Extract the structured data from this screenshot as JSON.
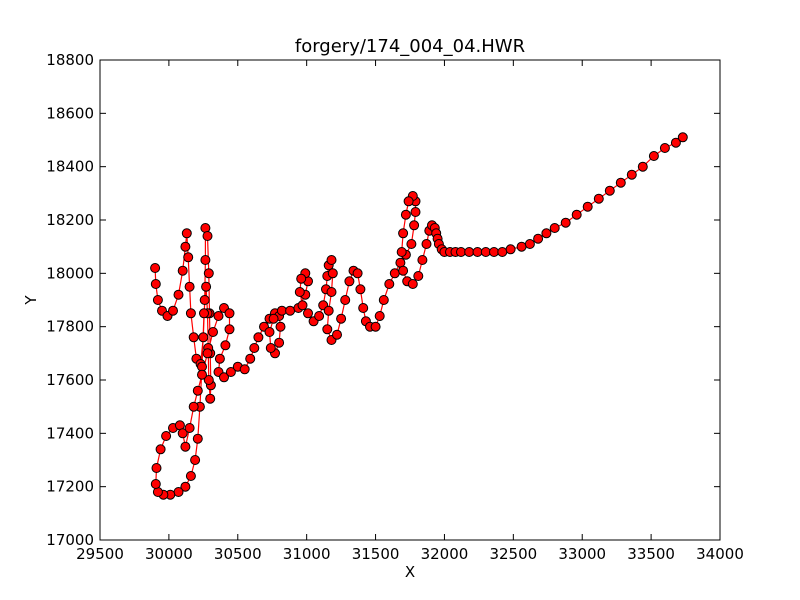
{
  "chart_data": {
    "type": "line",
    "title": "forgery/174_004_04.HWR",
    "xlabel": "X",
    "ylabel": "Y",
    "xlim": [
      29500,
      34000
    ],
    "ylim": [
      17000,
      18800
    ],
    "xticks": [
      "29500",
      "30000",
      "30500",
      "31000",
      "31500",
      "32000",
      "32500",
      "33000",
      "33500",
      "34000"
    ],
    "yticks": [
      "17000",
      "17200",
      "17400",
      "17600",
      "17800",
      "18000",
      "18200",
      "18400",
      "18600",
      "18800"
    ],
    "grid": false,
    "series": [
      {
        "line_color": "#ff0000",
        "marker_fill": "#ff0000",
        "marker_edge": "#000000",
        "points": [
          [
            29900,
            18020
          ],
          [
            29905,
            17960
          ],
          [
            29920,
            17900
          ],
          [
            29950,
            17860
          ],
          [
            29990,
            17840
          ],
          [
            30030,
            17860
          ],
          [
            30070,
            17920
          ],
          [
            30100,
            18010
          ],
          [
            30120,
            18100
          ],
          [
            30130,
            18150
          ],
          [
            30140,
            18060
          ],
          [
            30150,
            17950
          ],
          [
            30160,
            17850
          ],
          [
            30180,
            17760
          ],
          [
            30200,
            17680
          ],
          [
            30230,
            17660
          ],
          [
            30250,
            17760
          ],
          [
            30260,
            17900
          ],
          [
            30265,
            18050
          ],
          [
            30265,
            18170
          ],
          [
            30280,
            18140
          ],
          [
            30290,
            18000
          ],
          [
            30295,
            17850
          ],
          [
            30300,
            17700
          ],
          [
            30305,
            17580
          ],
          [
            30300,
            17530
          ],
          [
            30290,
            17600
          ],
          [
            30285,
            17720
          ],
          [
            30280,
            17850
          ],
          [
            30270,
            17950
          ],
          [
            30255,
            17850
          ],
          [
            30240,
            17650
          ],
          [
            30225,
            17500
          ],
          [
            30210,
            17380
          ],
          [
            30190,
            17300
          ],
          [
            30160,
            17240
          ],
          [
            30120,
            17200
          ],
          [
            30070,
            17180
          ],
          [
            30010,
            17170
          ],
          [
            29960,
            17170
          ],
          [
            29920,
            17180
          ],
          [
            29905,
            17210
          ],
          [
            29910,
            17270
          ],
          [
            29940,
            17340
          ],
          [
            29980,
            17390
          ],
          [
            30030,
            17420
          ],
          [
            30080,
            17430
          ],
          [
            30100,
            17400
          ],
          [
            30120,
            17350
          ],
          [
            30150,
            17420
          ],
          [
            30180,
            17500
          ],
          [
            30210,
            17560
          ],
          [
            30240,
            17620
          ],
          [
            30280,
            17700
          ],
          [
            30320,
            17780
          ],
          [
            30360,
            17840
          ],
          [
            30400,
            17870
          ],
          [
            30440,
            17850
          ],
          [
            30440,
            17790
          ],
          [
            30410,
            17730
          ],
          [
            30370,
            17680
          ],
          [
            30360,
            17630
          ],
          [
            30400,
            17610
          ],
          [
            30450,
            17630
          ],
          [
            30500,
            17650
          ],
          [
            30550,
            17640
          ],
          [
            30590,
            17680
          ],
          [
            30620,
            17720
          ],
          [
            30650,
            17760
          ],
          [
            30690,
            17800
          ],
          [
            30730,
            17830
          ],
          [
            30770,
            17850
          ],
          [
            30800,
            17840
          ],
          [
            30810,
            17800
          ],
          [
            30800,
            17740
          ],
          [
            30770,
            17700
          ],
          [
            30740,
            17720
          ],
          [
            30730,
            17780
          ],
          [
            30760,
            17830
          ],
          [
            30820,
            17860
          ],
          [
            30880,
            17860
          ],
          [
            30940,
            17870
          ],
          [
            30990,
            17920
          ],
          [
            31010,
            17970
          ],
          [
            30990,
            18000
          ],
          [
            30960,
            17980
          ],
          [
            30950,
            17930
          ],
          [
            30970,
            17880
          ],
          [
            31010,
            17850
          ],
          [
            31050,
            17820
          ],
          [
            31090,
            17840
          ],
          [
            31120,
            17880
          ],
          [
            31140,
            17940
          ],
          [
            31150,
            17990
          ],
          [
            31160,
            18030
          ],
          [
            31180,
            18050
          ],
          [
            31190,
            18000
          ],
          [
            31180,
            17930
          ],
          [
            31160,
            17860
          ],
          [
            31150,
            17790
          ],
          [
            31180,
            17750
          ],
          [
            31220,
            17770
          ],
          [
            31250,
            17830
          ],
          [
            31280,
            17900
          ],
          [
            31310,
            17970
          ],
          [
            31340,
            18010
          ],
          [
            31370,
            18000
          ],
          [
            31390,
            17940
          ],
          [
            31410,
            17870
          ],
          [
            31430,
            17820
          ],
          [
            31460,
            17800
          ],
          [
            31500,
            17800
          ],
          [
            31530,
            17840
          ],
          [
            31560,
            17900
          ],
          [
            31600,
            17960
          ],
          [
            31640,
            18000
          ],
          [
            31680,
            18040
          ],
          [
            31720,
            18070
          ],
          [
            31760,
            18110
          ],
          [
            31780,
            18180
          ],
          [
            31790,
            18230
          ],
          [
            31790,
            18270
          ],
          [
            31770,
            18290
          ],
          [
            31740,
            18270
          ],
          [
            31720,
            18220
          ],
          [
            31700,
            18150
          ],
          [
            31690,
            18080
          ],
          [
            31700,
            18010
          ],
          [
            31730,
            17970
          ],
          [
            31770,
            17960
          ],
          [
            31810,
            17990
          ],
          [
            31840,
            18050
          ],
          [
            31870,
            18110
          ],
          [
            31890,
            18160
          ],
          [
            31910,
            18180
          ],
          [
            31930,
            18170
          ],
          [
            31940,
            18150
          ],
          [
            31950,
            18130
          ],
          [
            31960,
            18110
          ],
          [
            31980,
            18090
          ],
          [
            32000,
            18080
          ],
          [
            32040,
            18080
          ],
          [
            32080,
            18080
          ],
          [
            32120,
            18080
          ],
          [
            32180,
            18080
          ],
          [
            32240,
            18080
          ],
          [
            32300,
            18080
          ],
          [
            32360,
            18080
          ],
          [
            32420,
            18080
          ],
          [
            32480,
            18090
          ],
          [
            32560,
            18100
          ],
          [
            32620,
            18110
          ],
          [
            32680,
            18130
          ],
          [
            32740,
            18150
          ],
          [
            32800,
            18170
          ],
          [
            32880,
            18190
          ],
          [
            32960,
            18220
          ],
          [
            33040,
            18250
          ],
          [
            33120,
            18280
          ],
          [
            33200,
            18310
          ],
          [
            33280,
            18340
          ],
          [
            33360,
            18370
          ],
          [
            33440,
            18400
          ],
          [
            33520,
            18440
          ],
          [
            33600,
            18470
          ],
          [
            33680,
            18490
          ],
          [
            33730,
            18510
          ]
        ]
      }
    ]
  }
}
